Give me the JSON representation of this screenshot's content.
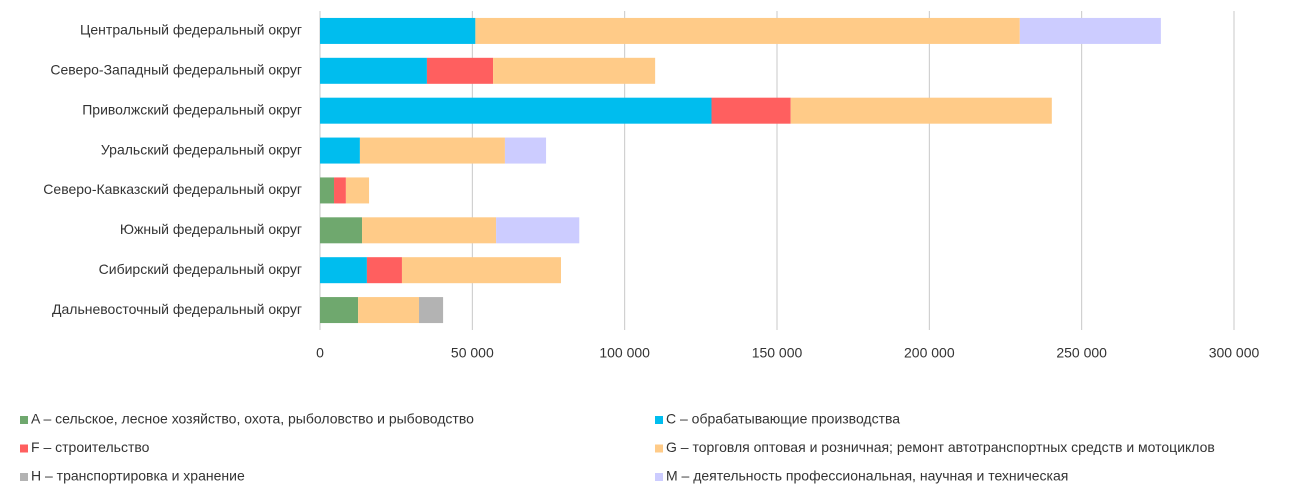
{
  "chart_data": {
    "type": "stacked-bar-horizontal",
    "categories": [
      "Центральный федеральный округ",
      "Северо-Западный федеральный округ",
      "Приволжский федеральный округ",
      "Уральский федеральный округ",
      "Северо-Кавказский федеральный округ",
      "Южный федеральный округ",
      "Сибирский федеральный округ",
      "Дальневосточный федеральный округ"
    ],
    "series": [
      {
        "name": "A – сельское, лесное хозяйство, охота, рыболовство и рыбоводство",
        "color": "#6fa86e",
        "values": [
          null,
          null,
          null,
          null,
          4600,
          13800,
          null,
          12500
        ]
      },
      {
        "name": "C – обрабатывающие производства",
        "color": "#00bdee",
        "values": [
          51000,
          35100,
          128500,
          13100,
          null,
          null,
          15400,
          null
        ]
      },
      {
        "name": "F – строительство",
        "color": "#ff5f5f",
        "values": [
          null,
          21700,
          26000,
          null,
          3900,
          null,
          11500,
          null
        ]
      },
      {
        "name": "G – торговля оптовая и розничная; ремонт автотранспортных средств и мотоциклов",
        "color": "#ffcb88",
        "values": [
          178700,
          53200,
          85700,
          47600,
          7600,
          44000,
          52200,
          20000
        ]
      },
      {
        "name": "H – транспортировка и хранение",
        "color": "#b3b3b3",
        "values": [
          null,
          null,
          null,
          null,
          null,
          null,
          null,
          7900
        ]
      },
      {
        "name": "M – деятельность профессиональная, научная и техническая",
        "color": "#ccccff",
        "values": [
          46300,
          null,
          null,
          13500,
          null,
          27300,
          null,
          null
        ]
      }
    ],
    "xlim": [
      0,
      300000
    ],
    "xticks": [
      0,
      {
        "value": 50000,
        "label": "50 000"
      },
      {
        "value": 100000,
        "label": "100 000"
      },
      {
        "value": 150000,
        "label": "150 000"
      },
      {
        "value": 200000,
        "label": "200 000"
      },
      {
        "value": 250000,
        "label": "250 000"
      },
      {
        "value": 300000,
        "label": "300 000"
      }
    ],
    "grid": true
  }
}
